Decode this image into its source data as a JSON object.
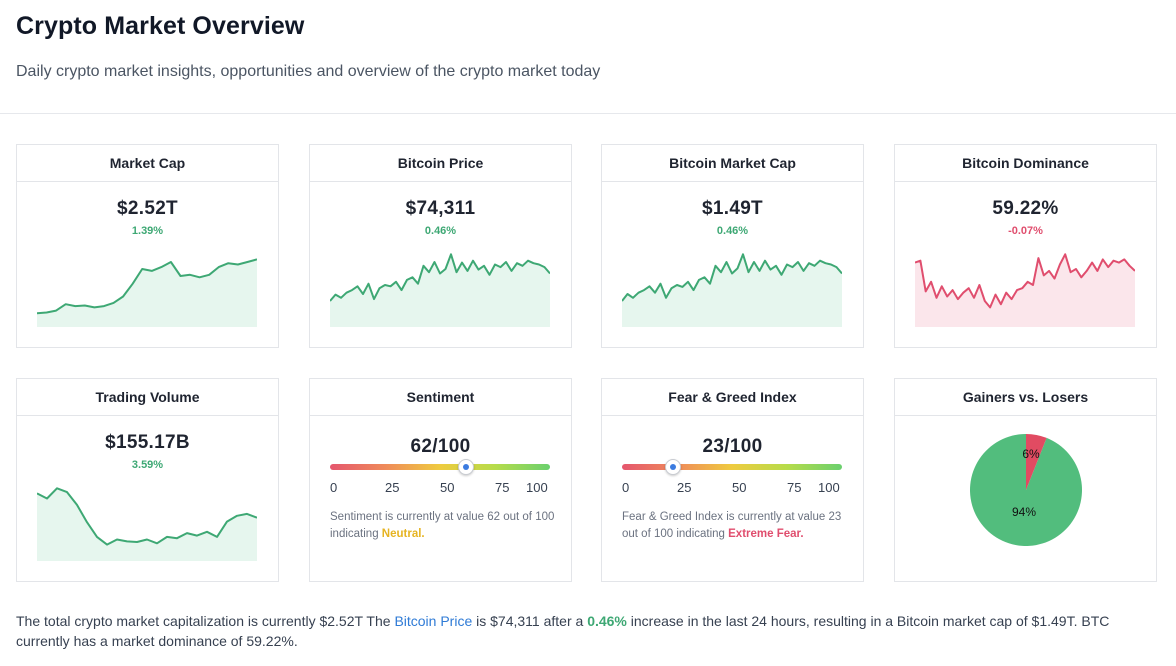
{
  "header": {
    "title": "Crypto Market Overview",
    "subtitle": "Daily crypto market insights, opportunities and overview of the crypto market today"
  },
  "colors": {
    "positive": "#3ea874",
    "negative": "#e04e6e",
    "positive_fill": "#e6f6ee",
    "negative_fill": "#fbe6eb",
    "link": "#2f7bd6",
    "neutral_word": "#e6b422"
  },
  "cards": {
    "market_cap": {
      "title": "Market Cap",
      "value": "$2.52T",
      "change": "1.39%",
      "trend": "up"
    },
    "bitcoin_price": {
      "title": "Bitcoin Price",
      "value": "$74,311",
      "change": "0.46%",
      "trend": "up"
    },
    "bitcoin_market_cap": {
      "title": "Bitcoin Market Cap",
      "value": "$1.49T",
      "change": "0.46%",
      "trend": "up"
    },
    "bitcoin_dominance": {
      "title": "Bitcoin Dominance",
      "value": "59.22%",
      "change": "-0.07%",
      "trend": "down"
    },
    "trading_volume": {
      "title": "Trading Volume",
      "value": "$155.17B",
      "change": "3.59%",
      "trend": "up"
    },
    "sentiment": {
      "title": "Sentiment",
      "value": "62/100",
      "score": 62,
      "ticks": [
        "0",
        "25",
        "50",
        "75",
        "100"
      ],
      "desc_prefix": "Sentiment is currently at value 62 out of 100 indicating ",
      "desc_word": "Neutral."
    },
    "fear_greed": {
      "title": "Fear & Greed Index",
      "value": "23/100",
      "score": 23,
      "ticks": [
        "0",
        "25",
        "50",
        "75",
        "100"
      ],
      "desc_prefix": "Fear & Greed Index is currently at value 23 out of 100 indicating ",
      "desc_word": "Extreme Fear."
    },
    "gainers_losers": {
      "title": "Gainers vs. Losers",
      "gainers_pct": 94,
      "losers_pct": 6,
      "gainers_label": "94%",
      "losers_label": "6%",
      "gainers_color": "#52bd7d",
      "losers_color": "#e14b62"
    }
  },
  "summary": {
    "part1": "The total crypto market capitalization is currently $2.52T The ",
    "link": "Bitcoin Price",
    "part2": " is $74,311 after a ",
    "pct": "0.46%",
    "part3": " increase in the last 24 hours, resulting in a Bitcoin market cap of $1.49T. BTC currently has a market dominance of 59.22%."
  },
  "sparklines": {
    "market_cap": [
      0.06,
      0.07,
      0.1,
      0.2,
      0.17,
      0.18,
      0.15,
      0.17,
      0.22,
      0.32,
      0.52,
      0.75,
      0.72,
      0.78,
      0.86,
      0.64,
      0.66,
      0.62,
      0.66,
      0.78,
      0.84,
      0.82,
      0.86,
      0.9
    ],
    "bitcoin_price": [
      0.25,
      0.35,
      0.3,
      0.38,
      0.42,
      0.48,
      0.36,
      0.52,
      0.28,
      0.45,
      0.5,
      0.48,
      0.55,
      0.42,
      0.58,
      0.62,
      0.52,
      0.8,
      0.7,
      0.86,
      0.68,
      0.75,
      0.98,
      0.7,
      0.85,
      0.72,
      0.88,
      0.74,
      0.8,
      0.66,
      0.82,
      0.78,
      0.86,
      0.72,
      0.84,
      0.8,
      0.88,
      0.84,
      0.82,
      0.78,
      0.68
    ],
    "bitcoin_market_cap": [
      0.25,
      0.36,
      0.3,
      0.38,
      0.42,
      0.48,
      0.38,
      0.52,
      0.3,
      0.45,
      0.5,
      0.47,
      0.55,
      0.42,
      0.58,
      0.62,
      0.52,
      0.8,
      0.7,
      0.86,
      0.68,
      0.76,
      0.98,
      0.7,
      0.86,
      0.72,
      0.88,
      0.74,
      0.8,
      0.66,
      0.82,
      0.78,
      0.86,
      0.72,
      0.84,
      0.8,
      0.88,
      0.84,
      0.82,
      0.78,
      0.68
    ],
    "bitcoin_dominance": [
      0.85,
      0.88,
      0.4,
      0.55,
      0.3,
      0.48,
      0.32,
      0.42,
      0.28,
      0.38,
      0.45,
      0.3,
      0.5,
      0.25,
      0.15,
      0.35,
      0.2,
      0.38,
      0.28,
      0.42,
      0.45,
      0.55,
      0.5,
      0.92,
      0.65,
      0.72,
      0.6,
      0.82,
      0.98,
      0.7,
      0.75,
      0.62,
      0.72,
      0.85,
      0.72,
      0.9,
      0.78,
      0.88,
      0.85,
      0.9,
      0.8,
      0.72
    ],
    "trading_volume": [
      0.9,
      0.82,
      0.98,
      0.92,
      0.72,
      0.45,
      0.22,
      0.1,
      0.18,
      0.15,
      0.14,
      0.18,
      0.12,
      0.22,
      0.2,
      0.28,
      0.24,
      0.3,
      0.22,
      0.46,
      0.55,
      0.58,
      0.52
    ]
  }
}
